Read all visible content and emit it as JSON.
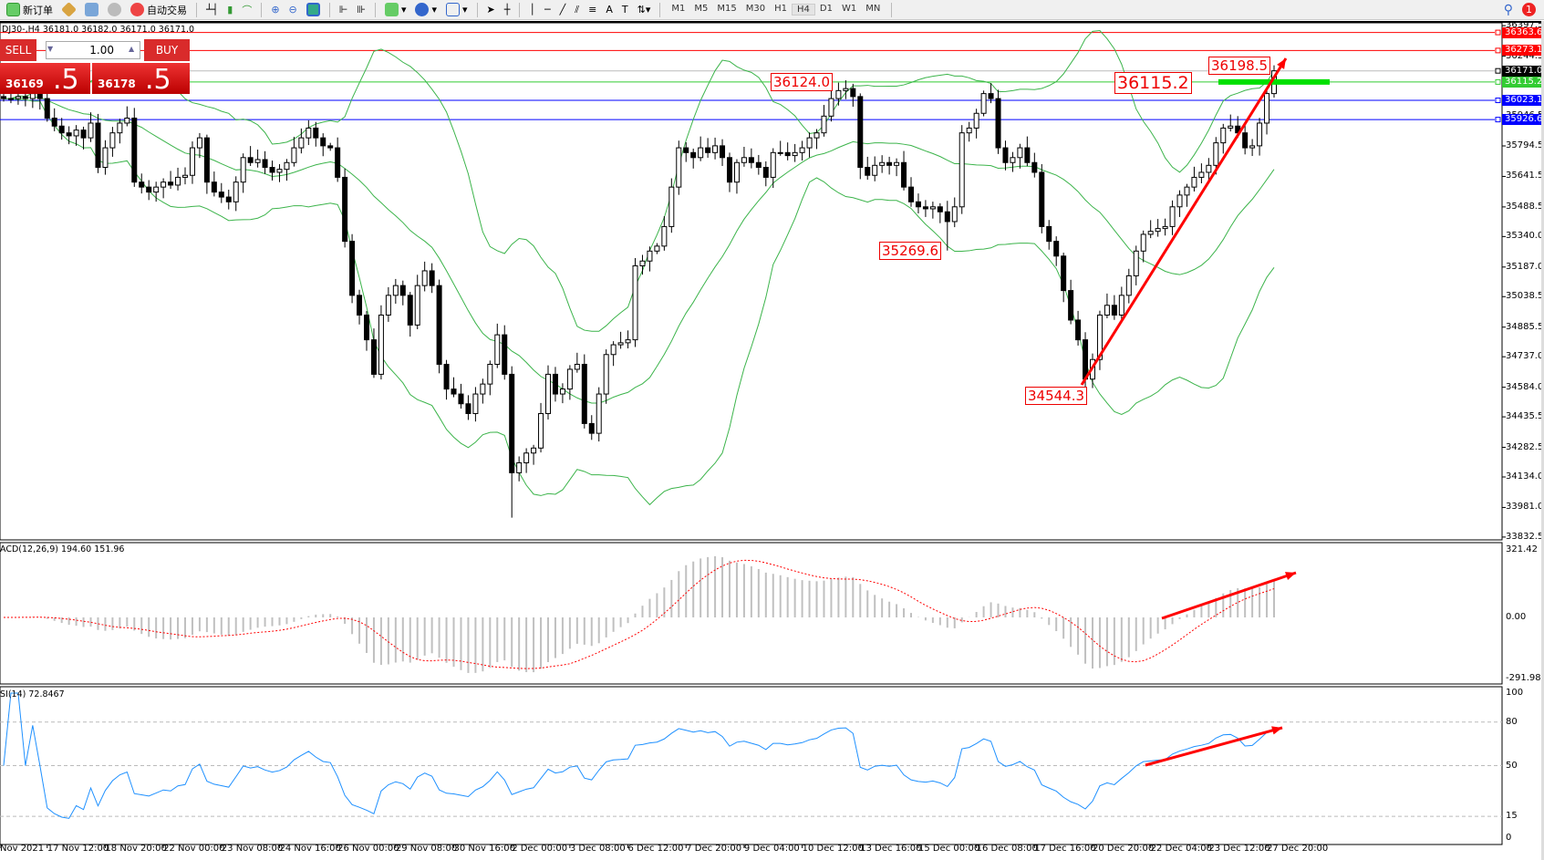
{
  "toolbar": {
    "new_order": "新订单",
    "auto_trading": "自动交易",
    "timeframes": [
      "M1",
      "M5",
      "M15",
      "M30",
      "H1",
      "H4",
      "D1",
      "W1",
      "MN"
    ],
    "active_timeframe": "H4",
    "notification_count": "1"
  },
  "header": {
    "symbol_info": "DJ30-,H4  36181.0 36182.0 36171.0 36171.0"
  },
  "trade_panel": {
    "sell_label": "SELL",
    "buy_label": "BUY",
    "lot": "1.00",
    "sell_price_main": "36169",
    "sell_price_frac": ".5",
    "buy_price_main": "36178",
    "buy_price_frac": ".5"
  },
  "colors": {
    "bull_body": "#ffffff",
    "bear_body": "#000000",
    "bollinger": "#3cb44b",
    "macd_hist": "#c0c0c0",
    "macd_signal": "#ff0000",
    "rsi": "#1e90ff",
    "annotation": "#ff0000"
  },
  "price_axis": {
    "ticks": [
      "36397.5",
      "36244.5",
      "36096.0",
      "35946.5",
      "35794.5",
      "35641.5",
      "35488.5",
      "35340.0",
      "35187.0",
      "35038.5",
      "34885.5",
      "34737.0",
      "34584.0",
      "34435.5",
      "34282.5",
      "34134.0",
      "33981.0",
      "33832.5"
    ],
    "range": [
      33832.5,
      36397.5
    ]
  },
  "levels": [
    {
      "price": "36363.6",
      "color": "#ff0000"
    },
    {
      "price": "36273.1",
      "color": "#ff0000"
    },
    {
      "price": "36171.0",
      "color": "#000000"
    },
    {
      "price": "36115.2",
      "color": "#33cc33"
    },
    {
      "price": "36023.1",
      "color": "#0000ff"
    },
    {
      "price": "35926.6",
      "color": "#0000ff"
    }
  ],
  "annotations": [
    {
      "text": "36124.0",
      "bar": 116
    },
    {
      "text": "35269.6",
      "bar": 130
    },
    {
      "text": "34544.3",
      "bar": 149
    },
    {
      "text": "36198.5",
      "bar": 175
    },
    {
      "text": "36115.2",
      "bar": 160
    }
  ],
  "chart_data": {
    "type": "candlestick",
    "symbol": "DJ30-",
    "timeframe": "H4",
    "closes": [
      36032,
      36032,
      36042,
      36032,
      36057,
      36032,
      35934,
      35894,
      35860,
      35845,
      35874,
      35835,
      35909,
      35687,
      35785,
      35860,
      35909,
      35934,
      35613,
      35588,
      35563,
      35588,
      35613,
      35598,
      35637,
      35647,
      35785,
      35835,
      35613,
      35563,
      35538,
      35514,
      35613,
      35736,
      35711,
      35726,
      35687,
      35662,
      35677,
      35711,
      35785,
      35835,
      35884,
      35835,
      35795,
      35785,
      35637,
      35316,
      35045,
      34946,
      34822,
      34649,
      34946,
      35045,
      35094,
      35045,
      34896,
      35094,
      35168,
      35094,
      34699,
      34575,
      34550,
      34501,
      34452,
      34550,
      34600,
      34699,
      34847,
      34649,
      34155,
      34205,
      34254,
      34279,
      34452,
      34649,
      34550,
      34575,
      34674,
      34699,
      34402,
      34353,
      34550,
      34748,
      34797,
      34807,
      34822,
      35193,
      35217,
      35267,
      35292,
      35390,
      35588,
      35785,
      35761,
      35736,
      35785,
      35761,
      35795,
      35736,
      35613,
      35711,
      35736,
      35711,
      35687,
      35637,
      35761,
      35761,
      35746,
      35761,
      35785,
      35835,
      35860,
      35944,
      36032,
      36072,
      36082,
      36042,
      35687,
      35647,
      35697,
      35711,
      35697,
      35711,
      35588,
      35514,
      35489,
      35479,
      35489,
      35464,
      35415,
      35489,
      35860,
      35884,
      35958,
      36057,
      36032,
      35785,
      35711,
      35736,
      35785,
      35711,
      35662,
      35390,
      35316,
      35242,
      35069,
      34921,
      34822,
      34625,
      34723,
      34946,
      34995,
      34946,
      35045,
      35143,
      35267,
      35351,
      35366,
      35380,
      35390,
      35489,
      35548,
      35588,
      35637,
      35662,
      35697,
      35810,
      35884,
      35894,
      35860,
      35785,
      35795,
      35909,
      36057,
      36171
    ],
    "extremes": [
      {
        "bar": 70,
        "low": 33930
      },
      {
        "bar": 116,
        "high": 36124.0
      },
      {
        "bar": 130,
        "low": 35269.6
      },
      {
        "bar": 149,
        "low": 34544.3
      },
      {
        "bar": 175,
        "high": 36198.5
      }
    ],
    "time_labels": [
      "Nov 2021",
      "17 Nov 12:00",
      "18 Nov 20:00",
      "22 Nov 00:00",
      "23 Nov 08:00",
      "24 Nov 16:00",
      "26 Nov 00:00",
      "29 Nov 08:00",
      "30 Nov 16:00",
      "2 Dec 00:00",
      "3 Dec 08:00",
      "6 Dec 12:00",
      "7 Dec 20:00",
      "9 Dec 04:00",
      "10 Dec 12:00",
      "13 Dec 16:00",
      "15 Dec 00:00",
      "16 Dec 08:00",
      "17 Dec 16:00",
      "20 Dec 20:00",
      "22 Dec 04:00",
      "23 Dec 12:00",
      "27 Dec 20:00"
    ],
    "indicators": {
      "bollinger": {
        "period": 20,
        "deviation": 2
      },
      "macd": {
        "label": "ACD(12,26,9) 194.60 151.96",
        "ticks": [
          "321.42",
          "0.00",
          "-291.98"
        ],
        "range": [
          -291.98,
          321.42
        ]
      },
      "rsi": {
        "label": "SI(14) 72.8467",
        "ticks": [
          "100",
          "80",
          "50",
          "15",
          "0"
        ],
        "levels": [
          80,
          50,
          15
        ]
      }
    }
  }
}
